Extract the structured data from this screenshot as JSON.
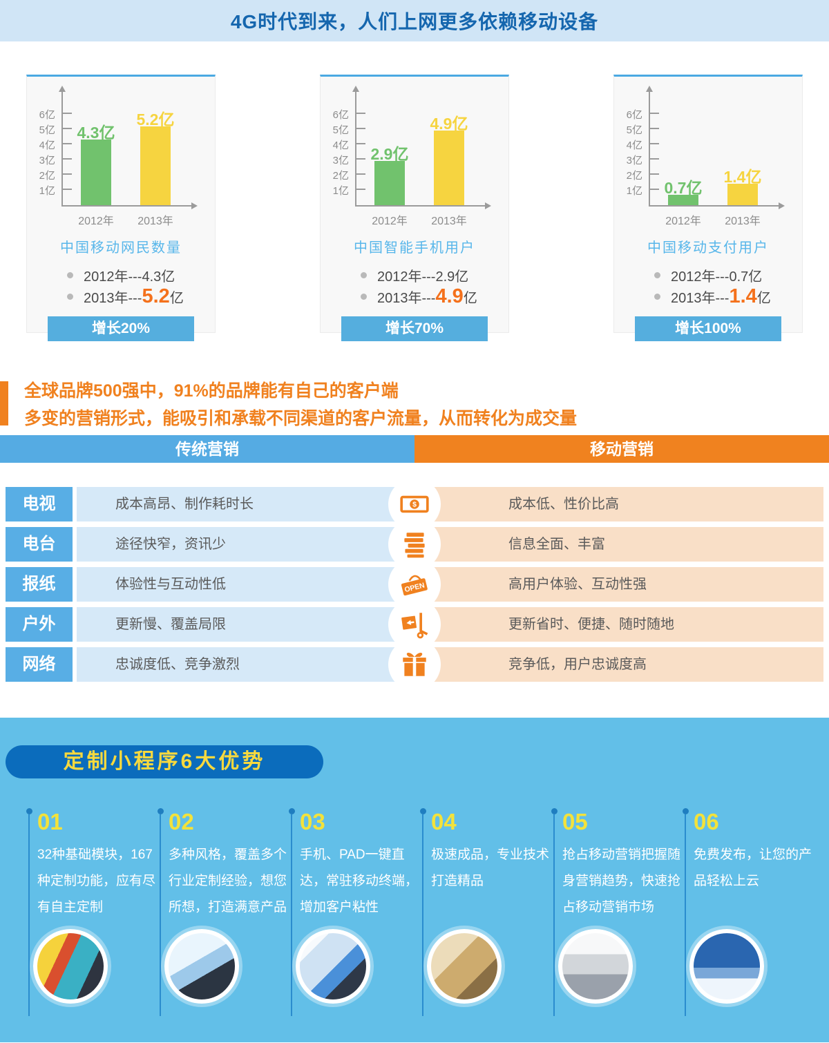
{
  "page": {
    "title": "4G时代到来，人们上网更多依赖移动设备"
  },
  "colors": {
    "header_bg": "#d0e5f6",
    "header_text": "#1566ae",
    "accent_blue": "#55abe3",
    "accent_orange": "#f0811f",
    "bar_green": "#71c26d",
    "bar_yellow": "#f6d440",
    "highlight_orange": "#f4711c",
    "row_blue_bg": "#d6e9f8",
    "row_orange_bg": "#f9dfc7",
    "section_bg": "#62bfe8",
    "pill_bg": "#0b6cbc",
    "pill_text": "#f8d93e"
  },
  "chart_data": [
    {
      "type": "bar",
      "title": "中国移动网民数量",
      "categories": [
        "2012年",
        "2013年"
      ],
      "values": [
        4.3,
        5.2
      ],
      "unit": "亿",
      "bar_labels": [
        "4.3亿",
        "5.2亿"
      ],
      "bar_colors": [
        "#71c26d",
        "#f6d440"
      ],
      "y_ticks": [
        "1亿",
        "2亿",
        "3亿",
        "4亿",
        "5亿",
        "6亿"
      ],
      "ylim": [
        0,
        6.5
      ],
      "legend": {
        "b1": "2012年---4.3亿",
        "b2_prefix": "2013年---",
        "b2_value": "5.2",
        "b2_suffix": "亿"
      },
      "growth_label": "增长20%"
    },
    {
      "type": "bar",
      "title": "中国智能手机用户",
      "categories": [
        "2012年",
        "2013年"
      ],
      "values": [
        2.9,
        4.9
      ],
      "unit": "亿",
      "bar_labels": [
        "2.9亿",
        "4.9亿"
      ],
      "bar_colors": [
        "#71c26d",
        "#f6d440"
      ],
      "y_ticks": [
        "1亿",
        "2亿",
        "3亿",
        "4亿",
        "5亿",
        "6亿"
      ],
      "ylim": [
        0,
        6.5
      ],
      "legend": {
        "b1": "2012年---2.9亿",
        "b2_prefix": "2013年---",
        "b2_value": "4.9",
        "b2_suffix": "亿"
      },
      "growth_label": "增长70%"
    },
    {
      "type": "bar",
      "title": "中国移动支付用户",
      "categories": [
        "2012年",
        "2013年"
      ],
      "values": [
        0.7,
        1.4
      ],
      "unit": "亿",
      "bar_labels": [
        "0.7亿",
        "1.4亿"
      ],
      "bar_colors": [
        "#71c26d",
        "#f6d440"
      ],
      "y_ticks": [
        "1亿",
        "2亿",
        "3亿",
        "4亿",
        "5亿",
        "6亿"
      ],
      "ylim": [
        0,
        6.5
      ],
      "legend": {
        "b1": "2012年---0.7亿",
        "b2_prefix": "2013年---",
        "b2_value": "1.4",
        "b2_suffix": "亿"
      },
      "growth_label": "增长100%"
    }
  ],
  "intro": {
    "line1": "全球品牌500强中，91%的品牌能有自己的客户端",
    "line2": "多变的营销形式，能吸引和承载不同渠道的客户流量，从而转化为成交量"
  },
  "comparison": {
    "left_header": "传统营销",
    "right_header": "移动营销",
    "open_sign_text": "OPEN",
    "money_symbol": "$",
    "rows": [
      {
        "label": "电视",
        "traditional": "成本高昂、制作耗时长",
        "mobile": "成本低、性价比高",
        "icon": "money-icon"
      },
      {
        "label": "电台",
        "traditional": "途径快窄，资讯少",
        "mobile": "信息全面、丰富",
        "icon": "books-icon"
      },
      {
        "label": "报纸",
        "traditional": "体验性与互动性低",
        "mobile": "高用户体验、互动性强",
        "icon": "open-sign-icon"
      },
      {
        "label": "户外",
        "traditional": "更新慢、覆盖局限",
        "mobile": "更新省时、便捷、随时随地",
        "icon": "trolley-icon"
      },
      {
        "label": "网络",
        "traditional": "忠诚度低、竞争激烈",
        "mobile": "竞争低，用户忠诚度高",
        "icon": "gift-icon"
      }
    ]
  },
  "advantages": {
    "title": "定制小程序6大优势",
    "items": [
      {
        "number": "01",
        "text": "32种基础模块，167种定制功能，应有尽有自主定制"
      },
      {
        "number": "02",
        "text": "多种风格，覆盖多个行业定制经验，想您所想，打造满意产品"
      },
      {
        "number": "03",
        "text": "手机、PAD一键直达，常驻移动终端，增加客户粘性"
      },
      {
        "number": "04",
        "text": "极速成品，专业技术打造精品"
      },
      {
        "number": "05",
        "text": "抢占移动营销把握随身营销趋势，快速抢占移动营销市场"
      },
      {
        "number": "06",
        "text": "免费发布，让您的产品轻松上云"
      }
    ]
  }
}
